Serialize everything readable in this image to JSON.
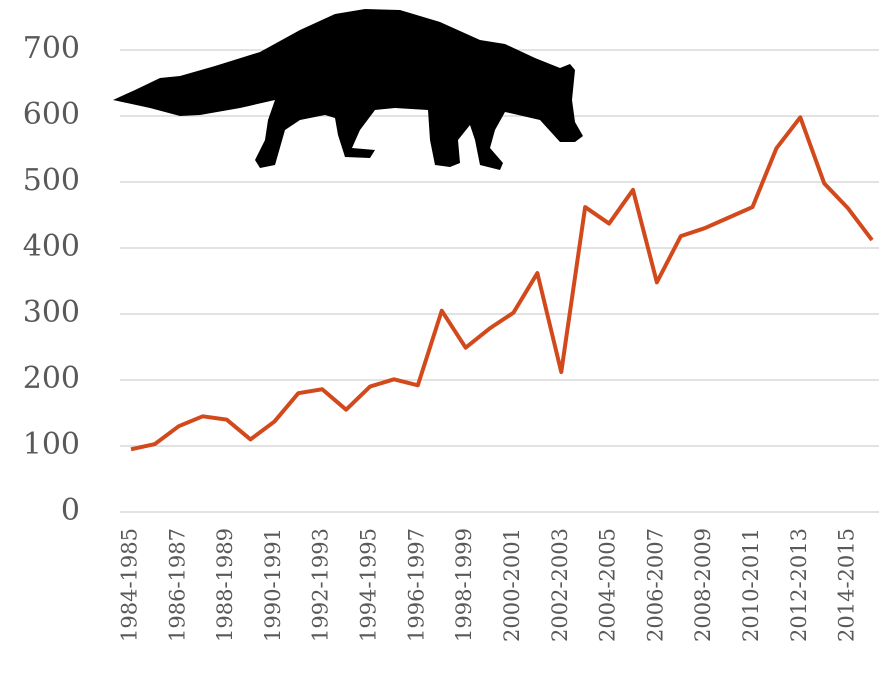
{
  "chart_data": {
    "type": "line",
    "categories": [
      "1984-1985",
      null,
      "1986-1987",
      null,
      "1988-1989",
      null,
      "1990-1991",
      null,
      "1992-1993",
      null,
      "1994-1995",
      null,
      "1996-1997",
      null,
      "1998-1999",
      null,
      "2000-2001",
      null,
      "2002-2003",
      null,
      "2004-2005",
      null,
      "2006-2007",
      null,
      "2008-2009",
      null,
      "2010-2011",
      null,
      "2012-2013",
      null,
      "2014-2015",
      null
    ],
    "values": [
      95,
      103,
      130,
      145,
      140,
      110,
      137,
      180,
      186,
      155,
      190,
      201,
      192,
      305,
      249,
      278,
      302,
      362,
      212,
      462,
      437,
      488,
      348,
      418,
      430,
      446,
      462,
      551,
      598,
      498,
      460,
      412
    ],
    "color": "#d24a1c",
    "ylim": [
      0,
      700
    ],
    "yticks": [
      0,
      100,
      200,
      300,
      400,
      500,
      600,
      700
    ],
    "grid": true
  }
}
